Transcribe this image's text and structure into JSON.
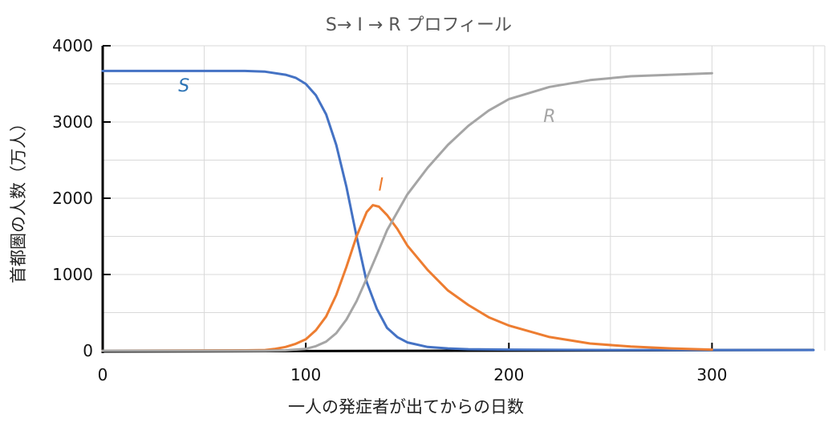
{
  "chart_data": {
    "type": "line",
    "title": "S→ I → R プロフィール",
    "xlabel": "一人の発症者が出てからの日数",
    "ylabel": "首都圏の人数（万人）",
    "xlim": [
      0,
      350
    ],
    "ylim": [
      0,
      4000
    ],
    "x_ticks": [
      "0",
      "100",
      "200",
      "300"
    ],
    "x_tick_values": [
      0,
      100,
      200,
      300
    ],
    "y_ticks": [
      "0",
      "1000",
      "2000",
      "3000",
      "4000"
    ],
    "y_tick_values": [
      0,
      1000,
      2000,
      3000,
      4000
    ],
    "grid": true,
    "legend": "none",
    "colors": {
      "S": "#4472c4",
      "I": "#ed7d31",
      "R": "#a5a5a5",
      "S_label": "#2e75b6"
    },
    "series": [
      {
        "name": "S",
        "label_at": [
          40,
          3400
        ],
        "x": [
          0,
          50,
          70,
          80,
          90,
          95,
          100,
          105,
          110,
          115,
          120,
          125,
          130,
          135,
          140,
          145,
          150,
          160,
          170,
          180,
          200,
          250,
          300,
          350
        ],
        "y": [
          3670,
          3670,
          3670,
          3660,
          3620,
          3580,
          3500,
          3350,
          3100,
          2700,
          2150,
          1500,
          900,
          550,
          300,
          180,
          110,
          50,
          30,
          20,
          15,
          10,
          10,
          10
        ]
      },
      {
        "name": "I",
        "label_at": [
          137,
          2100
        ],
        "x": [
          0,
          70,
          80,
          85,
          90,
          95,
          100,
          105,
          110,
          115,
          120,
          125,
          130,
          133,
          136,
          140,
          145,
          150,
          160,
          170,
          180,
          190,
          200,
          220,
          240,
          260,
          280,
          300
        ],
        "y": [
          0,
          5,
          10,
          25,
          50,
          90,
          150,
          270,
          450,
          730,
          1100,
          1500,
          1820,
          1910,
          1890,
          1780,
          1600,
          1380,
          1060,
          790,
          600,
          440,
          330,
          180,
          95,
          55,
          30,
          15
        ]
      },
      {
        "name": "R",
        "label_at": [
          220,
          3000
        ],
        "x": [
          0,
          80,
          90,
          100,
          105,
          110,
          115,
          120,
          125,
          130,
          135,
          140,
          150,
          160,
          170,
          180,
          190,
          200,
          220,
          240,
          260,
          280,
          300
        ],
        "y": [
          0,
          0,
          5,
          25,
          60,
          120,
          230,
          410,
          650,
          950,
          1260,
          1580,
          2050,
          2400,
          2700,
          2950,
          3150,
          3300,
          3460,
          3550,
          3600,
          3620,
          3640
        ]
      }
    ]
  }
}
